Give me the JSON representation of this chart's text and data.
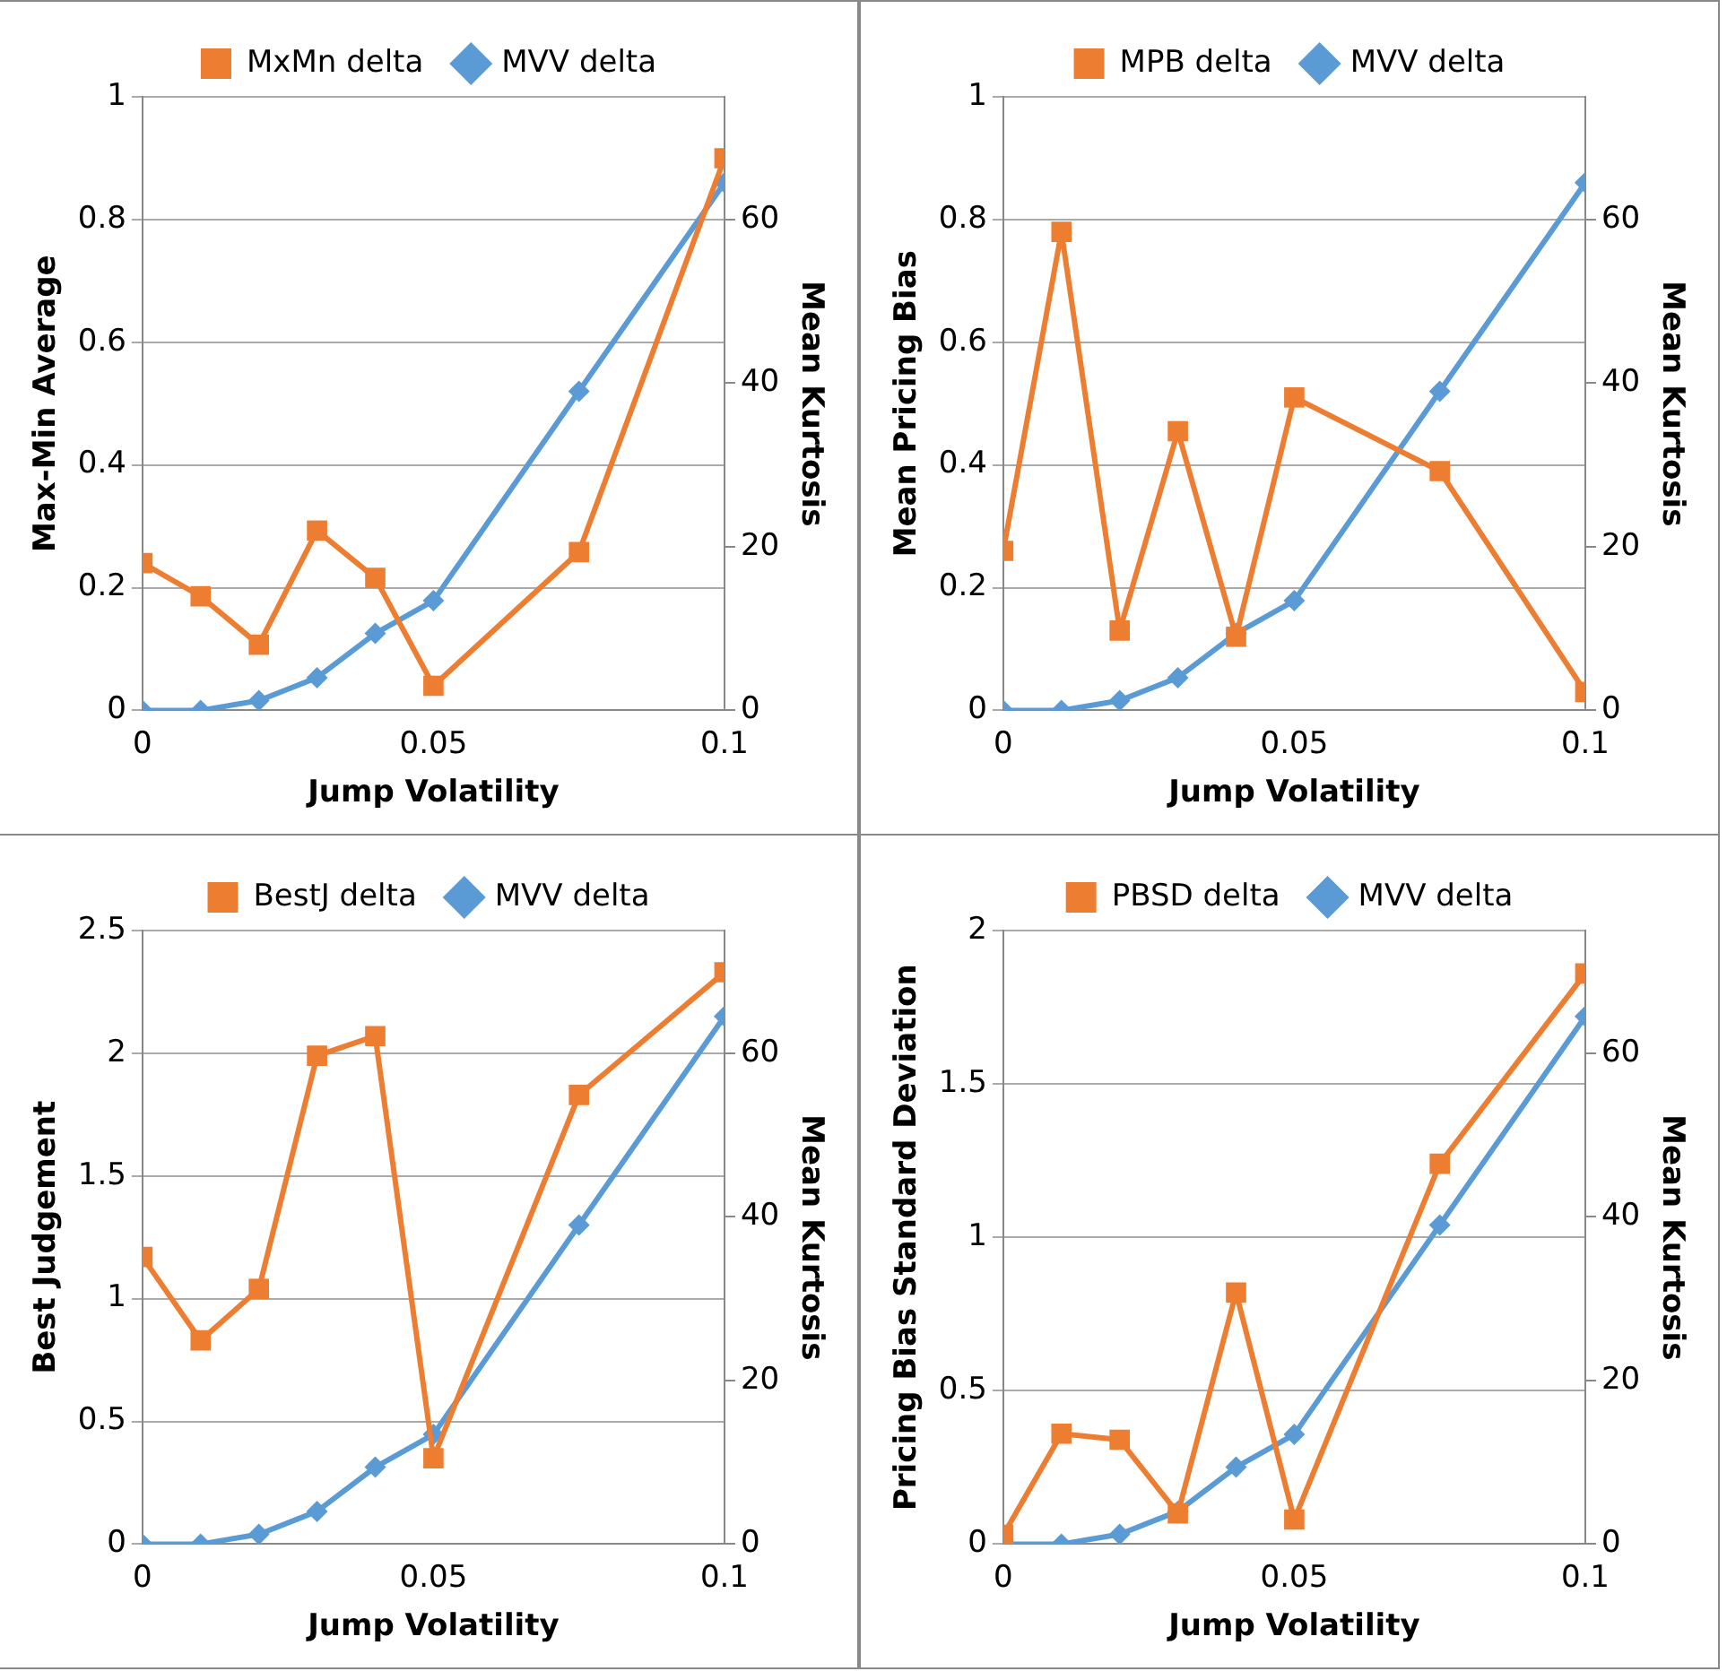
{
  "chart_data": [
    {
      "type": "line",
      "xlabel": "Jump Volatility",
      "ylabel": "Max-Min Average",
      "y2label": "Mean Kurtosis",
      "x": [
        0,
        0.01,
        0.02,
        0.03,
        0.04,
        0.05,
        0.075,
        0.1
      ],
      "xlim": [
        0,
        0.1
      ],
      "xticks": [
        0,
        0.05,
        0.1
      ],
      "ylim": [
        0,
        1
      ],
      "yticks": [
        0,
        0.2,
        0.4,
        0.6,
        0.8,
        1
      ],
      "y2lim": [
        0,
        75
      ],
      "y2ticks": [
        0,
        20,
        40,
        60
      ],
      "grid": "y",
      "legend": "top",
      "series": [
        {
          "name": "MxMn delta",
          "color": "#ed7d31",
          "marker": "square",
          "values": [
            0.24,
            0.186,
            0.107,
            0.293,
            0.216,
            0.04,
            0.258,
            0.9
          ]
        },
        {
          "name": "MVV delta",
          "color": "#5b9bd5",
          "marker": "diamond",
          "axis": "y2",
          "values": [
            0,
            0,
            1.2,
            4,
            9.4,
            13.4,
            39,
            64.5
          ]
        }
      ]
    },
    {
      "type": "line",
      "xlabel": "Jump Volatility",
      "ylabel": "Mean Pricing Bias",
      "y2label": "Mean Kurtosis",
      "x": [
        0,
        0.01,
        0.02,
        0.03,
        0.04,
        0.05,
        0.075,
        0.1
      ],
      "xlim": [
        0,
        0.1
      ],
      "xticks": [
        0,
        0.05,
        0.1
      ],
      "ylim": [
        0,
        1
      ],
      "yticks": [
        0,
        0.2,
        0.4,
        0.6,
        0.8,
        1
      ],
      "y2lim": [
        0,
        75
      ],
      "y2ticks": [
        0,
        20,
        40,
        60
      ],
      "grid": "y",
      "legend": "top",
      "series": [
        {
          "name": "MPB delta",
          "color": "#ed7d31",
          "marker": "square",
          "values": [
            0.26,
            0.78,
            0.13,
            0.455,
            0.12,
            0.51,
            0.39,
            0.03
          ]
        },
        {
          "name": "MVV delta",
          "color": "#5b9bd5",
          "marker": "diamond",
          "axis": "y2",
          "values": [
            0,
            0,
            1.2,
            4,
            9.4,
            13.4,
            39,
            64.5
          ]
        }
      ]
    },
    {
      "type": "line",
      "xlabel": "Jump Volatility",
      "ylabel": "Best Judgement",
      "y2label": "Mean Kurtosis",
      "x": [
        0,
        0.01,
        0.02,
        0.03,
        0.04,
        0.05,
        0.075,
        0.1
      ],
      "xlim": [
        0,
        0.1
      ],
      "xticks": [
        0,
        0.05,
        0.1
      ],
      "ylim": [
        0,
        2.5
      ],
      "yticks": [
        0,
        0.5,
        1,
        1.5,
        2,
        2.5
      ],
      "y2lim": [
        0,
        75
      ],
      "y2ticks": [
        0,
        20,
        40,
        60
      ],
      "grid": "y",
      "legend": "top",
      "series": [
        {
          "name": "BestJ delta",
          "color": "#ed7d31",
          "marker": "square",
          "values": [
            1.17,
            0.83,
            1.04,
            1.99,
            2.07,
            0.35,
            1.83,
            2.33
          ]
        },
        {
          "name": "MVV delta",
          "color": "#5b9bd5",
          "marker": "diamond",
          "axis": "y2",
          "values": [
            0,
            0,
            1.2,
            4,
            9.4,
            13.4,
            39,
            64.5
          ]
        }
      ]
    },
    {
      "type": "line",
      "xlabel": "Jump Volatility",
      "ylabel": "Pricing Bias Standard Deviation",
      "y2label": "Mean Kurtosis",
      "x": [
        0,
        0.01,
        0.02,
        0.03,
        0.04,
        0.05,
        0.075,
        0.1
      ],
      "xlim": [
        0,
        0.1
      ],
      "xticks": [
        0,
        0.05,
        0.1
      ],
      "ylim": [
        0,
        2
      ],
      "yticks": [
        0,
        0.5,
        1,
        1.5,
        2
      ],
      "y2lim": [
        0,
        75
      ],
      "y2ticks": [
        0,
        20,
        40,
        60
      ],
      "grid": "y",
      "legend": "top",
      "series": [
        {
          "name": "PBSD delta",
          "color": "#ed7d31",
          "marker": "square",
          "values": [
            0.03,
            0.36,
            0.34,
            0.1,
            0.82,
            0.08,
            1.24,
            1.86
          ]
        },
        {
          "name": "MVV delta",
          "color": "#5b9bd5",
          "marker": "diamond",
          "axis": "y2",
          "values": [
            0,
            0,
            1.2,
            4,
            9.4,
            13.4,
            39,
            64.5
          ]
        }
      ]
    }
  ]
}
